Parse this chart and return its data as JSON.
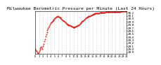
{
  "title": "Milwaukee Barometric Pressure per Minute (Last 24 Hours)",
  "title_fontsize": 4.5,
  "background_color": "#ffffff",
  "plot_bg_color": "#ffffff",
  "line_color": "#cc0000",
  "marker": ".",
  "markersize": 0.8,
  "linewidth": 0,
  "ylim": [
    28.85,
    30.25
  ],
  "yticks": [
    28.9,
    29.0,
    29.1,
    29.2,
    29.3,
    29.4,
    29.5,
    29.6,
    29.7,
    29.8,
    29.9,
    30.0,
    30.1,
    30.2
  ],
  "ytick_fontsize": 3.0,
  "xtick_fontsize": 2.5,
  "grid_color": "#bbbbbb",
  "grid_linestyle": ":",
  "grid_linewidth": 0.4,
  "pressure_data": [
    29.02,
    28.97,
    28.93,
    28.9,
    28.88,
    28.9,
    28.94,
    28.98,
    29.03,
    29.08,
    29.05,
    29.02,
    29.1,
    29.18,
    29.26,
    29.34,
    29.42,
    29.5,
    29.57,
    29.63,
    29.68,
    29.73,
    29.77,
    29.81,
    29.85,
    29.88,
    29.91,
    29.94,
    29.96,
    29.98,
    30.0,
    30.02,
    30.04,
    30.06,
    30.07,
    30.08,
    30.07,
    30.06,
    30.05,
    30.04,
    30.02,
    30.0,
    29.98,
    29.96,
    29.94,
    29.92,
    29.9,
    29.88,
    29.86,
    29.84,
    29.82,
    29.81,
    29.8,
    29.79,
    29.78,
    29.77,
    29.76,
    29.75,
    29.74,
    29.73,
    29.72,
    29.72,
    29.73,
    29.74,
    29.75,
    29.76,
    29.77,
    29.78,
    29.8,
    29.82,
    29.84,
    29.86,
    29.88,
    29.9,
    29.92,
    29.94,
    29.96,
    29.98,
    30.0,
    30.02,
    30.04,
    30.05,
    30.06,
    30.07,
    30.08,
    30.09,
    30.1,
    30.11,
    30.12,
    30.13,
    30.14,
    30.15,
    30.16,
    30.16,
    30.17,
    30.17,
    30.18,
    30.18,
    30.19,
    30.19,
    30.19,
    30.2,
    30.2,
    30.2,
    30.2,
    30.21,
    30.21,
    30.21,
    30.21,
    30.21,
    30.22,
    30.22,
    30.22,
    30.22,
    30.22,
    30.22,
    30.22,
    30.22,
    30.22,
    30.22,
    30.22,
    30.22,
    30.22,
    30.22,
    30.23,
    30.23,
    30.23,
    30.23,
    30.23,
    30.23,
    30.23,
    30.23,
    30.23,
    30.23,
    30.24,
    30.24,
    30.24,
    30.24,
    30.24,
    30.24,
    30.24,
    30.24,
    30.24,
    30.25
  ],
  "x_tick_positions": [
    0,
    6,
    12,
    18,
    24,
    30,
    36,
    42,
    48,
    54,
    60,
    66,
    72,
    78,
    84,
    90,
    96,
    102,
    108,
    114,
    120,
    126,
    132,
    138,
    143
  ],
  "x_tick_labels": [
    "0",
    "1",
    "2",
    "3",
    "4",
    "5",
    "6",
    "7",
    "8",
    "9",
    "10",
    "11",
    "12",
    "13",
    "14",
    "15",
    "16",
    "17",
    "18",
    "19",
    "20",
    "21",
    "22",
    "23",
    "24"
  ]
}
